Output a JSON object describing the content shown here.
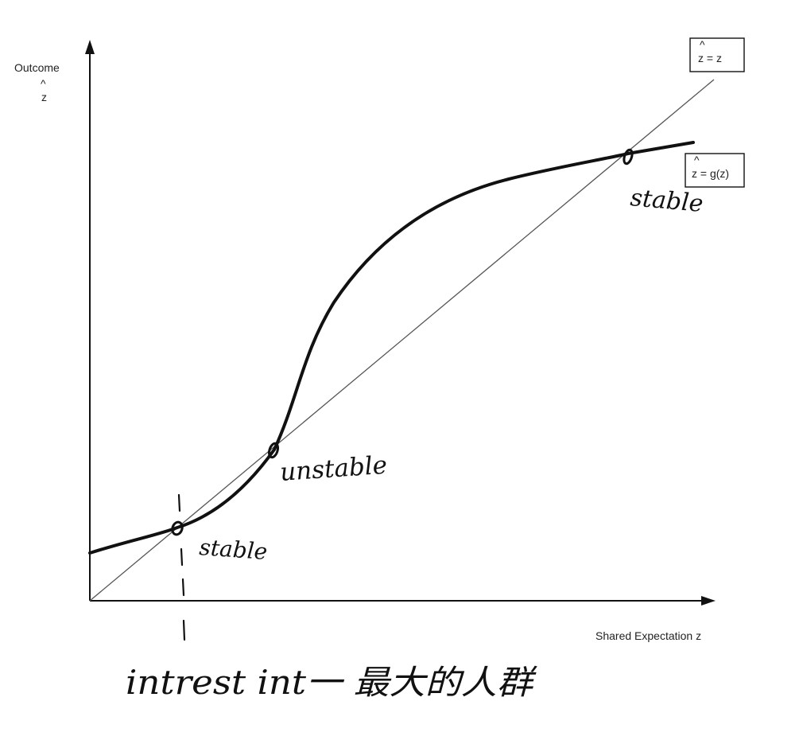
{
  "axes": {
    "y_label": "Outcome",
    "y_symbol": "z",
    "x_label": "Shared Expectation z"
  },
  "legend": {
    "identity": "z = z",
    "curve": "z = g(z)"
  },
  "annotations": {
    "upper_equilibrium": "stable",
    "middle_equilibrium": "unstable",
    "lower_equilibrium": "stable",
    "bottom_note": "intrest int一 最大的人群"
  },
  "colors": {
    "curve": "#111111",
    "identity_line": "#555555",
    "axes": "#111111"
  }
}
